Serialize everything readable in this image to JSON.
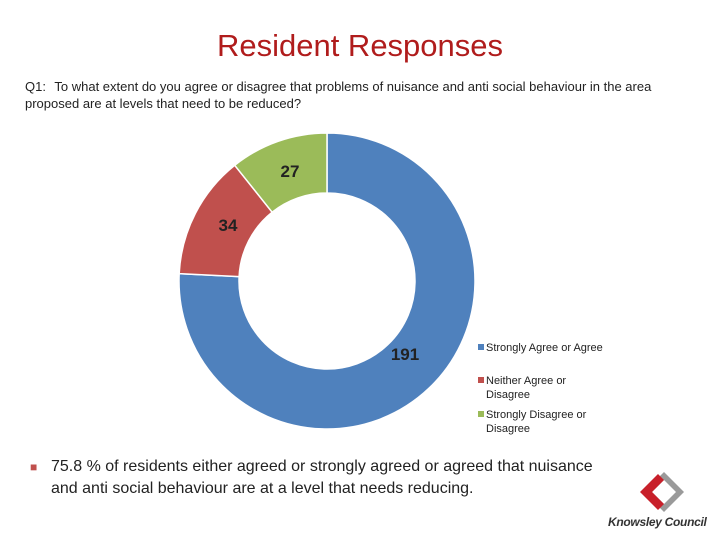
{
  "slide": {
    "title": "Resident Responses",
    "question_label": "Q1:",
    "question_text": "To what extent do you agree or disagree that problems of nuisance and anti social behaviour in the area proposed are at levels that need to be reduced?",
    "bullet_text": "75.8 % of residents  either agreed or strongly agreed or agreed that nuisance and anti social behaviour  are at a level that needs reducing.",
    "logo_text": "Knowsley Council",
    "colors": {
      "title": "#b01c1c",
      "bullet": "#c0504d",
      "logo_red": "#c8202a",
      "logo_grey": "#9a9a9a"
    }
  },
  "chart_data": {
    "type": "pie",
    "donut": true,
    "title": "",
    "categories": [
      "Strongly Agree or Agree",
      "Neither Agree or Disagree",
      "Strongly Disagree or Disagree"
    ],
    "values": [
      191,
      34,
      27
    ],
    "colors": [
      "#4f81bd",
      "#c0504d",
      "#9bbb59"
    ],
    "data_labels": [
      "191",
      "34",
      "27"
    ],
    "legend_position": "right"
  }
}
